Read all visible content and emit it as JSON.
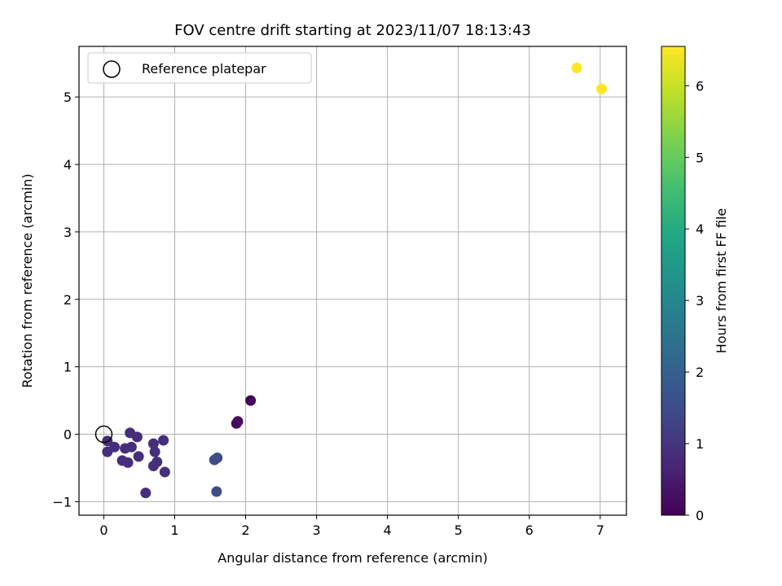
{
  "chart_data": {
    "type": "scatter",
    "title": "FOV centre drift starting at 2023/11/07 18:13:43",
    "xlabel": "Angular distance from reference (arcmin)",
    "ylabel": "Rotation from reference (arcmin)",
    "xlim": [
      -0.35,
      7.37
    ],
    "ylim": [
      -1.2,
      5.75
    ],
    "xticks": [
      0,
      1,
      2,
      3,
      4,
      5,
      6,
      7
    ],
    "yticks": [
      -1,
      0,
      1,
      2,
      3,
      4,
      5
    ],
    "grid": true,
    "legend": {
      "position": "top-left",
      "entries": [
        "Reference platepar"
      ]
    },
    "reference_point": {
      "x": 0,
      "y": 0
    },
    "colorbar": {
      "label": "Hours from first FF file",
      "range": [
        0,
        6.55
      ],
      "ticks": [
        0,
        1,
        2,
        3,
        4,
        5,
        6
      ],
      "colormap": "viridis"
    },
    "points": [
      {
        "x": 2.07,
        "y": 0.5,
        "hours": 0.1
      },
      {
        "x": 1.87,
        "y": 0.16,
        "hours": 0.15
      },
      {
        "x": 1.89,
        "y": 0.19,
        "hours": 0.2
      },
      {
        "x": 0.05,
        "y": -0.1,
        "hours": 0.85
      },
      {
        "x": 0.05,
        "y": -0.26,
        "hours": 0.85
      },
      {
        "x": 0.15,
        "y": -0.19,
        "hours": 0.85
      },
      {
        "x": 0.26,
        "y": -0.39,
        "hours": 0.85
      },
      {
        "x": 0.3,
        "y": -0.21,
        "hours": 0.85
      },
      {
        "x": 0.34,
        "y": -0.42,
        "hours": 0.85
      },
      {
        "x": 0.37,
        "y": 0.02,
        "hours": 0.85
      },
      {
        "x": 0.39,
        "y": -0.19,
        "hours": 0.85
      },
      {
        "x": 0.47,
        "y": -0.04,
        "hours": 0.85
      },
      {
        "x": 0.49,
        "y": -0.33,
        "hours": 0.85
      },
      {
        "x": 0.59,
        "y": -0.87,
        "hours": 0.85
      },
      {
        "x": 0.7,
        "y": -0.14,
        "hours": 0.9
      },
      {
        "x": 0.72,
        "y": -0.26,
        "hours": 0.9
      },
      {
        "x": 0.7,
        "y": -0.47,
        "hours": 0.9
      },
      {
        "x": 0.75,
        "y": -0.41,
        "hours": 0.9
      },
      {
        "x": 0.84,
        "y": -0.09,
        "hours": 0.9
      },
      {
        "x": 0.86,
        "y": -0.56,
        "hours": 0.9
      },
      {
        "x": 1.56,
        "y": -0.38,
        "hours": 1.5
      },
      {
        "x": 1.6,
        "y": -0.35,
        "hours": 1.5
      },
      {
        "x": 1.59,
        "y": -0.85,
        "hours": 1.5
      },
      {
        "x": 6.67,
        "y": 5.43,
        "hours": 6.55
      },
      {
        "x": 7.02,
        "y": 5.12,
        "hours": 6.55
      }
    ]
  }
}
